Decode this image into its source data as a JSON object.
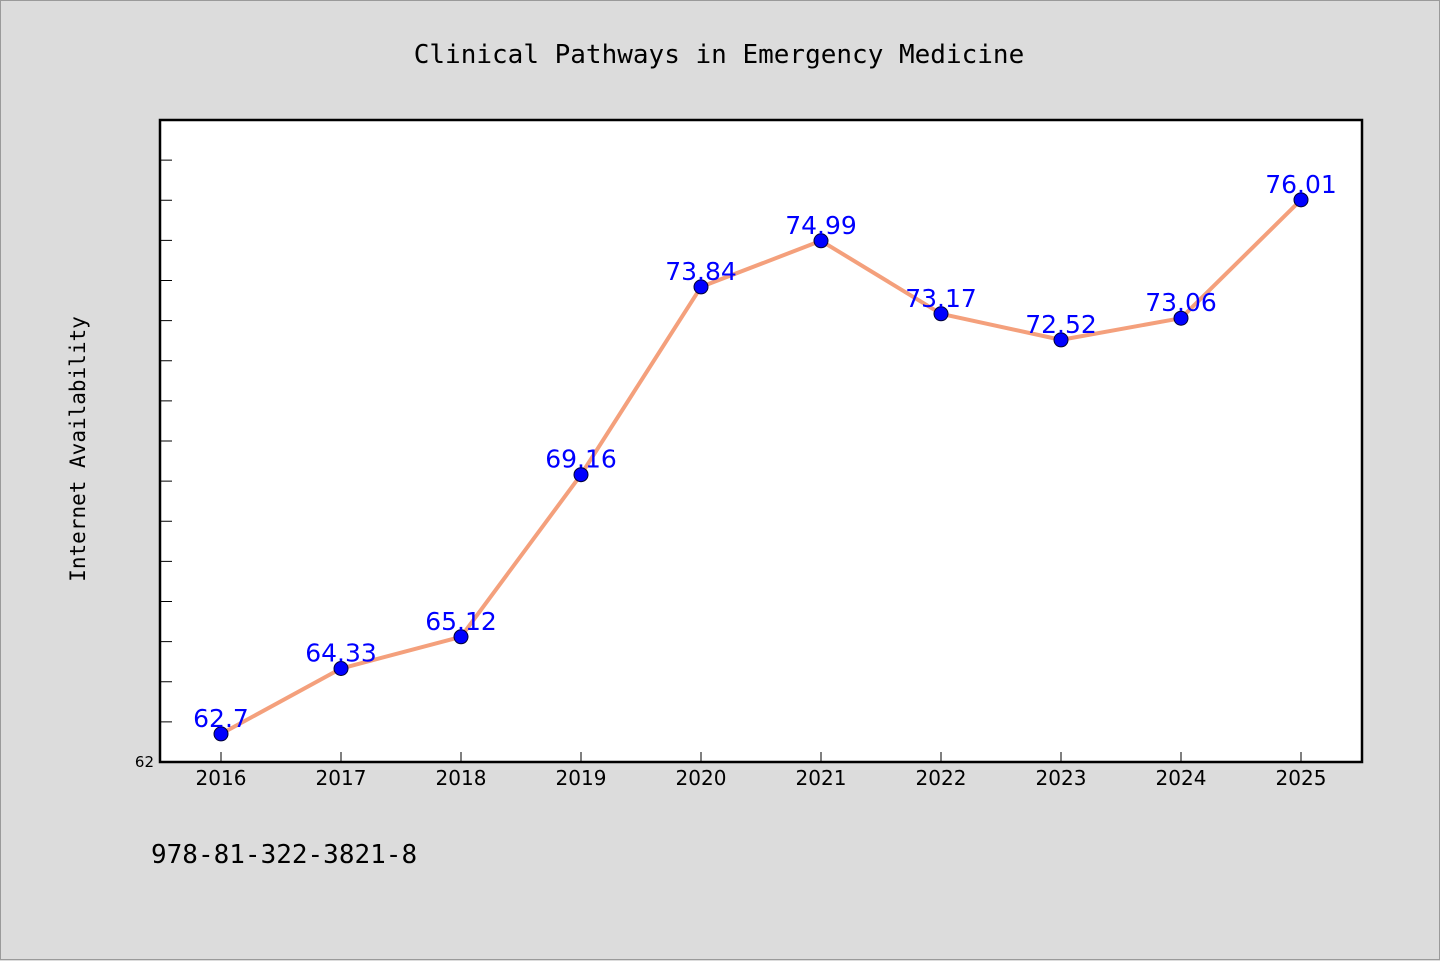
{
  "chart_data": {
    "type": "line",
    "title": "Clinical Pathways in Emergency Medicine",
    "xlabel": "",
    "ylabel": "Internet Availability",
    "x": [
      "2016",
      "2017",
      "2018",
      "2019",
      "2020",
      "2021",
      "2022",
      "2023",
      "2024",
      "2025"
    ],
    "series": [
      {
        "values": [
          62.7,
          64.33,
          65.12,
          69.16,
          73.84,
          74.99,
          73.17,
          72.52,
          73.06,
          76.01
        ],
        "labels": [
          "62.7",
          "64.33",
          "65.12",
          "69.16",
          "73.84",
          "74.99",
          "73.17",
          "72.52",
          "73.06",
          "76.01"
        ],
        "line_color": "#f4a07c",
        "marker_color": "#0000ff"
      }
    ],
    "ylim": [
      62,
      78
    ],
    "ytick_minor_step": 1,
    "ytick_labels": [
      "62"
    ],
    "grid": false,
    "legend": "none"
  },
  "footer": {
    "isbn": "978-81-322-3821-8"
  },
  "colors": {
    "background": "#dcdcdc",
    "plot_background": "#ffffff",
    "line": "#f4a07c",
    "marker": "#0000ff",
    "data_label": "#0000ff"
  }
}
